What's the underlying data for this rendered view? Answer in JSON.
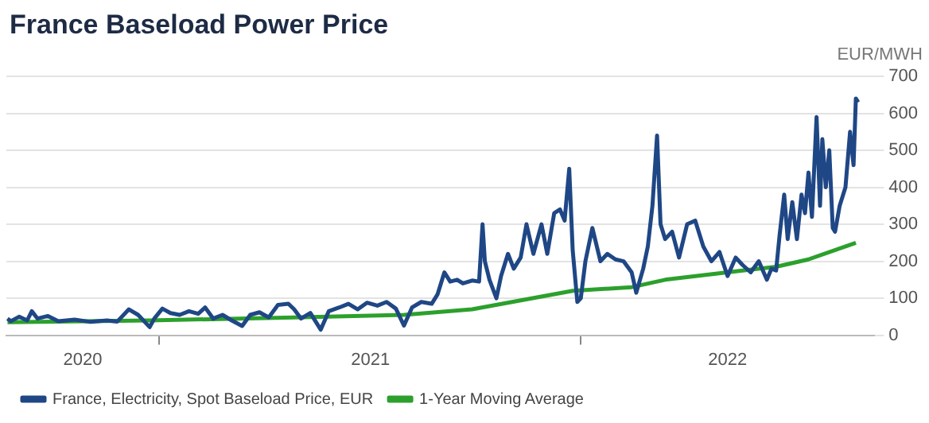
{
  "chart_data": {
    "type": "line",
    "title": "France Baseload Power Price",
    "ylabel": "EUR/MWH",
    "xlim": [
      "2020-08-22",
      "2022-09-12"
    ],
    "xticks": [
      {
        "value": "2020-10-27",
        "label": "2020"
      },
      {
        "value": "2021-01-01",
        "label": null
      },
      {
        "value": "2021-07-03",
        "label": "2021"
      },
      {
        "value": "2022-01-01",
        "label": null
      },
      {
        "value": "2022-05-08",
        "label": "2022"
      }
    ],
    "ylim": [
      0,
      700
    ],
    "yticks": [
      0,
      100,
      200,
      300,
      400,
      500,
      600,
      700
    ],
    "grid": "y",
    "legend": "bottom",
    "marker": "none",
    "line_style": "solid",
    "series": [
      {
        "name": "France, Electricity, Spot Baseload Price, EUR",
        "color": "#1f4785",
        "x": [
          "2020-08-23",
          "2020-08-26",
          "2020-09-02",
          "2020-09-09",
          "2020-09-13",
          "2020-09-18",
          "2020-09-27",
          "2020-10-06",
          "2020-10-20",
          "2020-11-03",
          "2020-11-17",
          "2020-11-26",
          "2020-12-06",
          "2020-12-14",
          "2020-12-24",
          "2020-12-28",
          "2021-01-04",
          "2021-01-11",
          "2021-01-19",
          "2021-01-27",
          "2021-02-04",
          "2021-02-10",
          "2021-02-17",
          "2021-02-25",
          "2021-03-05",
          "2021-03-14",
          "2021-03-21",
          "2021-03-29",
          "2021-04-06",
          "2021-04-14",
          "2021-04-23",
          "2021-04-28",
          "2021-05-04",
          "2021-05-12",
          "2021-05-21",
          "2021-05-28",
          "2021-06-06",
          "2021-06-14",
          "2021-06-22",
          "2021-06-30",
          "2021-07-09",
          "2021-07-17",
          "2021-07-25",
          "2021-08-01",
          "2021-08-08",
          "2021-08-16",
          "2021-08-25",
          "2021-08-30",
          "2021-09-05",
          "2021-09-10",
          "2021-09-16",
          "2021-09-21",
          "2021-09-29",
          "2021-10-05",
          "2021-10-08",
          "2021-10-10",
          "2021-10-14",
          "2021-10-20",
          "2021-10-24",
          "2021-10-30",
          "2021-11-04",
          "2021-11-10",
          "2021-11-15",
          "2021-11-21",
          "2021-11-28",
          "2021-12-03",
          "2021-12-09",
          "2021-12-14",
          "2021-12-18",
          "2021-12-22",
          "2021-12-25",
          "2021-12-29",
          "2022-01-01",
          "2022-01-05",
          "2022-01-11",
          "2022-01-18",
          "2022-01-24",
          "2022-01-31",
          "2022-02-07",
          "2022-02-14",
          "2022-02-18",
          "2022-02-24",
          "2022-02-28",
          "2022-03-04",
          "2022-03-08",
          "2022-03-11",
          "2022-03-15",
          "2022-03-21",
          "2022-03-27",
          "2022-04-03",
          "2022-04-10",
          "2022-04-17",
          "2022-04-24",
          "2022-05-01",
          "2022-05-08",
          "2022-05-15",
          "2022-05-21",
          "2022-05-28",
          "2022-06-04",
          "2022-06-11",
          "2022-06-15",
          "2022-06-19",
          "2022-06-22",
          "2022-06-26",
          "2022-06-29",
          "2022-07-03",
          "2022-07-07",
          "2022-07-11",
          "2022-07-14",
          "2022-07-17",
          "2022-07-20",
          "2022-07-24",
          "2022-07-27",
          "2022-07-29",
          "2022-08-01",
          "2022-08-04",
          "2022-08-07",
          "2022-08-09",
          "2022-08-13",
          "2022-08-18",
          "2022-08-22",
          "2022-08-25",
          "2022-08-27",
          "2022-08-29"
        ],
        "values": [
          45,
          38,
          50,
          40,
          65,
          45,
          52,
          38,
          42,
          36,
          40,
          37,
          70,
          55,
          22,
          45,
          72,
          60,
          55,
          65,
          58,
          75,
          45,
          55,
          40,
          25,
          55,
          62,
          48,
          82,
          85,
          70,
          45,
          60,
          15,
          65,
          75,
          85,
          70,
          88,
          80,
          90,
          72,
          26,
          75,
          90,
          85,
          110,
          170,
          145,
          150,
          140,
          148,
          145,
          300,
          200,
          150,
          100,
          160,
          220,
          180,
          210,
          300,
          220,
          300,
          220,
          330,
          340,
          310,
          450,
          230,
          90,
          100,
          200,
          290,
          200,
          220,
          205,
          200,
          170,
          115,
          180,
          240,
          350,
          540,
          300,
          260,
          280,
          210,
          300,
          310,
          240,
          200,
          225,
          160,
          210,
          190,
          170,
          200,
          150,
          180,
          175,
          270,
          380,
          260,
          360,
          260,
          380,
          330,
          440,
          320,
          590,
          350,
          530,
          400,
          500,
          290,
          280,
          350,
          400,
          550,
          460,
          640,
          630
        ]
      },
      {
        "name": "1-Year Moving Average",
        "color": "#2ca02c",
        "x": [
          "2020-08-23",
          "2020-12-24",
          "2021-04-28",
          "2021-08-01",
          "2021-09-29",
          "2021-12-25",
          "2022-02-14",
          "2022-03-15",
          "2022-05-21",
          "2022-06-19",
          "2022-07-17",
          "2022-08-27"
        ],
        "values": [
          35,
          40,
          48,
          55,
          70,
          120,
          130,
          150,
          175,
          185,
          205,
          250
        ]
      }
    ]
  }
}
